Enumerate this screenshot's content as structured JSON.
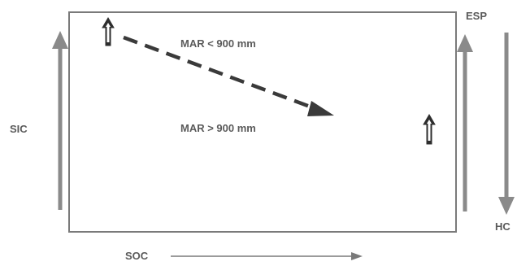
{
  "labels": {
    "left_axis": "SIC",
    "bottom_axis": "SOC",
    "right_top": "ESP",
    "right_bottom": "HC",
    "annotation_upper": "MAR < 900 mm",
    "annotation_lower": "MAR > 900 mm"
  },
  "colors": {
    "line": "#7a7a7a",
    "arrow_fill": "#8a8a8a",
    "dashed_arrow": "#3a3a3a",
    "text": "#5a5a5a"
  }
}
